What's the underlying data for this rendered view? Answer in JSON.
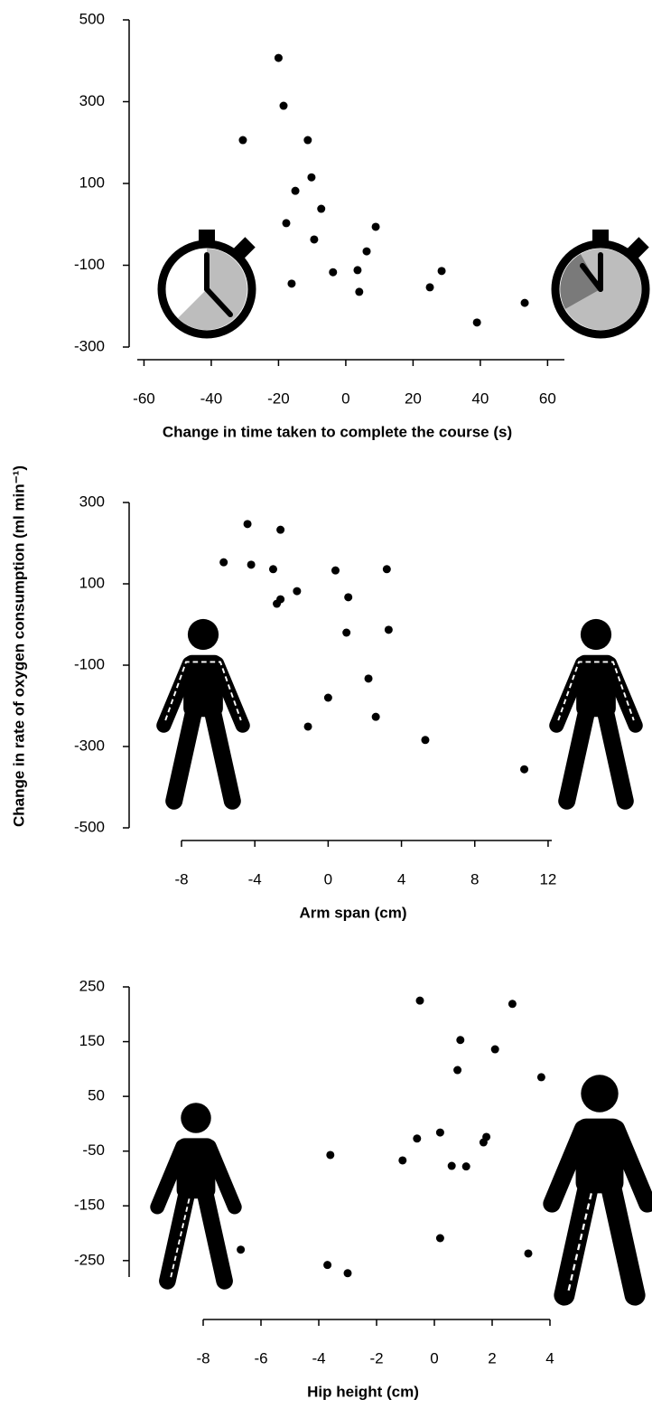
{
  "chart_data": [
    {
      "type": "scatter",
      "xlabel": "Change in time taken to complete the course (s)",
      "color": "#000000",
      "x": [
        -20,
        -18.5,
        -30.6,
        -11.3,
        -10.2,
        -15,
        -7.3,
        -17.7,
        8.9,
        -9.4,
        6.2,
        -3.8,
        3.5,
        28.5,
        -16.1,
        4,
        25,
        53.2,
        39
      ],
      "values": [
        407,
        290,
        206,
        206,
        115,
        82,
        38,
        3,
        -6,
        -37,
        -66,
        -117,
        -112,
        -114,
        -145,
        -165,
        -154,
        -192,
        -240
      ],
      "xlim": [
        -62,
        65
      ],
      "ylim": [
        -300,
        500
      ],
      "xticks": [
        -60,
        -40,
        -20,
        0,
        20,
        40,
        60
      ],
      "yticks": [
        -300,
        -100,
        100,
        300,
        500
      ]
    },
    {
      "type": "scatter",
      "xlabel": "Arm span (cm)",
      "ylabel": "Change in rate of oxygen consumption (ml min⁻¹)",
      "color": "#000000",
      "x": [
        -4.4,
        -2.6,
        -5.7,
        -4.2,
        -3,
        0.4,
        3.2,
        -1.7,
        -2.6,
        -2.8,
        1.1,
        1,
        3.3,
        2.2,
        0,
        2.6,
        -1.1,
        5.3,
        10.7
      ],
      "values": [
        247,
        233,
        153,
        147,
        136,
        133,
        136,
        82,
        62,
        51,
        67,
        -20,
        -13,
        -133,
        -180,
        -227,
        -251,
        -284,
        -356
      ],
      "xlim": [
        -8,
        12.2
      ],
      "ylim": [
        -500,
        300
      ],
      "xticks": [
        -8,
        -4,
        0,
        4,
        8,
        12
      ],
      "yticks": [
        -500,
        -300,
        -100,
        100,
        300
      ]
    },
    {
      "type": "scatter",
      "xlabel": "Hip height (cm)",
      "color": "#000000",
      "x": [
        -0.5,
        2.7,
        0.9,
        2.1,
        0.8,
        3.7,
        0.2,
        -0.6,
        1.8,
        1.7,
        -3.6,
        -1.1,
        0.6,
        1.1,
        0.2,
        -6.7,
        3.25,
        -3.7,
        -3
      ],
      "values": [
        225,
        219,
        153,
        136,
        98,
        85,
        -16,
        -27,
        -24,
        -34,
        -57,
        -67,
        -77,
        -78,
        -209,
        -230,
        -237,
        -258,
        -273
      ],
      "xlim": [
        -8,
        4
      ],
      "ylim": [
        -280,
        250
      ],
      "xticks": [
        -8,
        -6,
        -4,
        -2,
        0,
        2,
        4
      ],
      "yticks": [
        -250,
        -150,
        -50,
        50,
        150,
        250
      ]
    }
  ]
}
